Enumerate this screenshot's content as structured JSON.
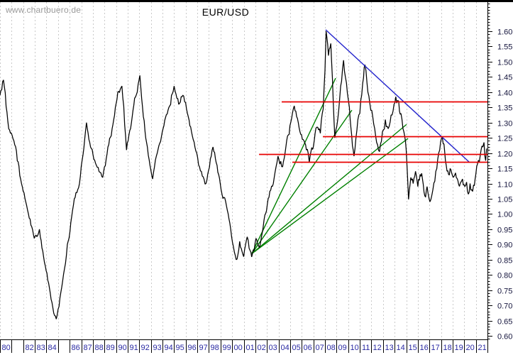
{
  "chart_data": {
    "type": "line",
    "title": "EUR/USD",
    "watermark": "www.chartbuero.de",
    "x_axis": {
      "start_year": 1980,
      "end_year": 2021,
      "labels": [
        "80",
        "",
        "82",
        "83",
        "84",
        "",
        "86",
        "87",
        "88",
        "89",
        "90",
        "91",
        "92",
        "93",
        "94",
        "95",
        "96",
        "97",
        "98",
        "99",
        "00",
        "01",
        "02",
        "03",
        "04",
        "05",
        "06",
        "07",
        "08",
        "09",
        "10",
        "11",
        "12",
        "13",
        "14",
        "15",
        "16",
        "17",
        "18",
        "19",
        "20",
        "21"
      ]
    },
    "y_axis": {
      "min": 0.6,
      "max": 1.6,
      "major_step": 0.05,
      "minor_step": 0.01,
      "tick_labels": [
        "1.60",
        "1.55",
        "1.50",
        "1.45",
        "1.40",
        "1.35",
        "1.30",
        "1.25",
        "1.20",
        "1.15",
        "1.10",
        "1.05",
        "1.00",
        "0.95",
        "0.90",
        "0.85",
        "0.80",
        "0.75",
        "0.70",
        "0.65",
        "0.60"
      ]
    },
    "price_series": {
      "name": "EUR/USD",
      "anchors": [
        [
          0,
          1.39
        ],
        [
          0.3,
          1.44
        ],
        [
          0.75,
          1.28
        ],
        [
          1.2,
          1.24
        ],
        [
          1.85,
          1.1
        ],
        [
          2.45,
          1.0
        ],
        [
          2.95,
          0.92
        ],
        [
          3.4,
          0.95
        ],
        [
          3.9,
          0.83
        ],
        [
          4.4,
          0.72
        ],
        [
          4.85,
          0.655
        ],
        [
          5.4,
          0.78
        ],
        [
          5.8,
          0.9
        ],
        [
          6.4,
          1.05
        ],
        [
          6.85,
          1.1
        ],
        [
          7.45,
          1.3
        ],
        [
          7.8,
          1.22
        ],
        [
          8.3,
          1.16
        ],
        [
          8.85,
          1.12
        ],
        [
          9.3,
          1.22
        ],
        [
          9.8,
          1.31
        ],
        [
          10.15,
          1.4
        ],
        [
          10.5,
          1.42
        ],
        [
          10.9,
          1.21
        ],
        [
          11.25,
          1.28
        ],
        [
          11.6,
          1.38
        ],
        [
          12.05,
          1.455
        ],
        [
          12.35,
          1.32
        ],
        [
          12.7,
          1.22
        ],
        [
          13.15,
          1.115
        ],
        [
          13.55,
          1.2
        ],
        [
          14.05,
          1.28
        ],
        [
          14.55,
          1.35
        ],
        [
          15,
          1.42
        ],
        [
          15.4,
          1.36
        ],
        [
          15.75,
          1.39
        ],
        [
          16.15,
          1.33
        ],
        [
          16.5,
          1.27
        ],
        [
          16.95,
          1.2
        ],
        [
          17.35,
          1.14
        ],
        [
          17.75,
          1.1
        ],
        [
          18.35,
          1.22
        ],
        [
          18.7,
          1.16
        ],
        [
          19.05,
          1.08
        ],
        [
          19.45,
          1.04
        ],
        [
          19.8,
          0.97
        ],
        [
          20.35,
          0.85
        ],
        [
          20.65,
          0.91
        ],
        [
          21,
          0.86
        ],
        [
          21.3,
          0.925
        ],
        [
          21.55,
          0.88
        ],
        [
          21.75,
          0.87
        ],
        [
          22.05,
          0.92
        ],
        [
          22.35,
          0.89
        ],
        [
          22.75,
          0.98
        ],
        [
          23.1,
          1.05
        ],
        [
          23.55,
          1.1
        ],
        [
          23.95,
          1.19
        ],
        [
          24.35,
          1.155
        ],
        [
          24.7,
          1.24
        ],
        [
          25.05,
          1.3
        ],
        [
          25.35,
          1.355
        ],
        [
          25.7,
          1.3
        ],
        [
          26.05,
          1.245
        ],
        [
          26.4,
          1.21
        ],
        [
          26.65,
          1.17
        ],
        [
          27,
          1.22
        ],
        [
          27.3,
          1.285
        ],
        [
          27.6,
          1.265
        ],
        [
          27.85,
          1.345
        ],
        [
          28,
          1.47
        ],
        [
          28.1,
          1.6
        ],
        [
          28.3,
          1.52
        ],
        [
          28.5,
          1.56
        ],
        [
          28.65,
          1.44
        ],
        [
          28.85,
          1.25
        ],
        [
          29.1,
          1.31
        ],
        [
          29.35,
          1.42
        ],
        [
          29.6,
          1.505
        ],
        [
          29.85,
          1.43
        ],
        [
          30.1,
          1.35
        ],
        [
          30.3,
          1.26
        ],
        [
          30.5,
          1.19
        ],
        [
          30.75,
          1.275
        ],
        [
          31,
          1.33
        ],
        [
          31.25,
          1.43
        ],
        [
          31.45,
          1.49
        ],
        [
          31.7,
          1.4
        ],
        [
          31.95,
          1.34
        ],
        [
          32.2,
          1.295
        ],
        [
          32.45,
          1.235
        ],
        [
          32.7,
          1.205
        ],
        [
          32.95,
          1.27
        ],
        [
          33.2,
          1.31
        ],
        [
          33.45,
          1.28
        ],
        [
          33.7,
          1.325
        ],
        [
          33.95,
          1.36
        ],
        [
          34.1,
          1.385
        ],
        [
          34.35,
          1.37
        ],
        [
          34.55,
          1.33
        ],
        [
          34.8,
          1.27
        ],
        [
          35,
          1.21
        ],
        [
          35.2,
          1.048
        ],
        [
          35.4,
          1.12
        ],
        [
          35.6,
          1.1
        ],
        [
          35.8,
          1.14
        ],
        [
          36,
          1.09
        ],
        [
          36.2,
          1.13
        ],
        [
          36.4,
          1.115
        ],
        [
          36.6,
          1.06
        ],
        [
          36.8,
          1.09
        ],
        [
          37.05,
          1.04
        ],
        [
          37.3,
          1.08
        ],
        [
          37.55,
          1.14
        ],
        [
          37.8,
          1.2
        ],
        [
          38.05,
          1.25
        ],
        [
          38.25,
          1.23
        ],
        [
          38.45,
          1.16
        ],
        [
          38.65,
          1.13
        ],
        [
          38.85,
          1.145
        ],
        [
          39.05,
          1.12
        ],
        [
          39.25,
          1.135
        ],
        [
          39.45,
          1.11
        ],
        [
          39.65,
          1.1
        ],
        [
          39.85,
          1.115
        ],
        [
          40.05,
          1.09
        ],
        [
          40.2,
          1.105
        ],
        [
          40.35,
          1.065
        ],
        [
          40.5,
          1.1
        ],
        [
          40.65,
          1.08
        ],
        [
          40.8,
          1.095
        ],
        [
          41,
          1.13
        ],
        [
          41.15,
          1.165
        ],
        [
          41.3,
          1.17
        ],
        [
          41.45,
          1.21
        ],
        [
          41.6,
          1.22
        ],
        [
          41.7,
          1.235
        ],
        [
          41.78,
          1.19
        ],
        [
          41.85,
          1.175
        ],
        [
          41.93,
          1.215
        ]
      ]
    },
    "support_resistance_lines": [
      {
        "value": 1.369,
        "start_offset": 24.27
      },
      {
        "value": 1.255,
        "start_offset": 27.82
      },
      {
        "value": 1.197,
        "start_offset": 22.32
      },
      {
        "value": 1.171,
        "start_offset": 25.19
      }
    ],
    "fan_trendlines": {
      "origin": [
        21.7,
        0.87
      ],
      "ends": [
        [
          28.92,
          1.446
        ],
        [
          30.32,
          1.341
        ],
        [
          35.03,
          1.294
        ],
        [
          35.16,
          1.248
        ]
      ]
    },
    "downtrend_line": {
      "from": [
        28.06,
        1.605
      ],
      "to": [
        40.41,
        1.171
      ]
    },
    "colors": {
      "price": "#000000",
      "grid": "#c9c9c9",
      "resistance": "#e80000",
      "fan": "#008000",
      "downtrend": "#2222cc",
      "frame": "#000000",
      "x_label": "#2929a3",
      "y_label": "#14143c",
      "title": "#000000",
      "watermark": "#9a9a9a"
    }
  }
}
